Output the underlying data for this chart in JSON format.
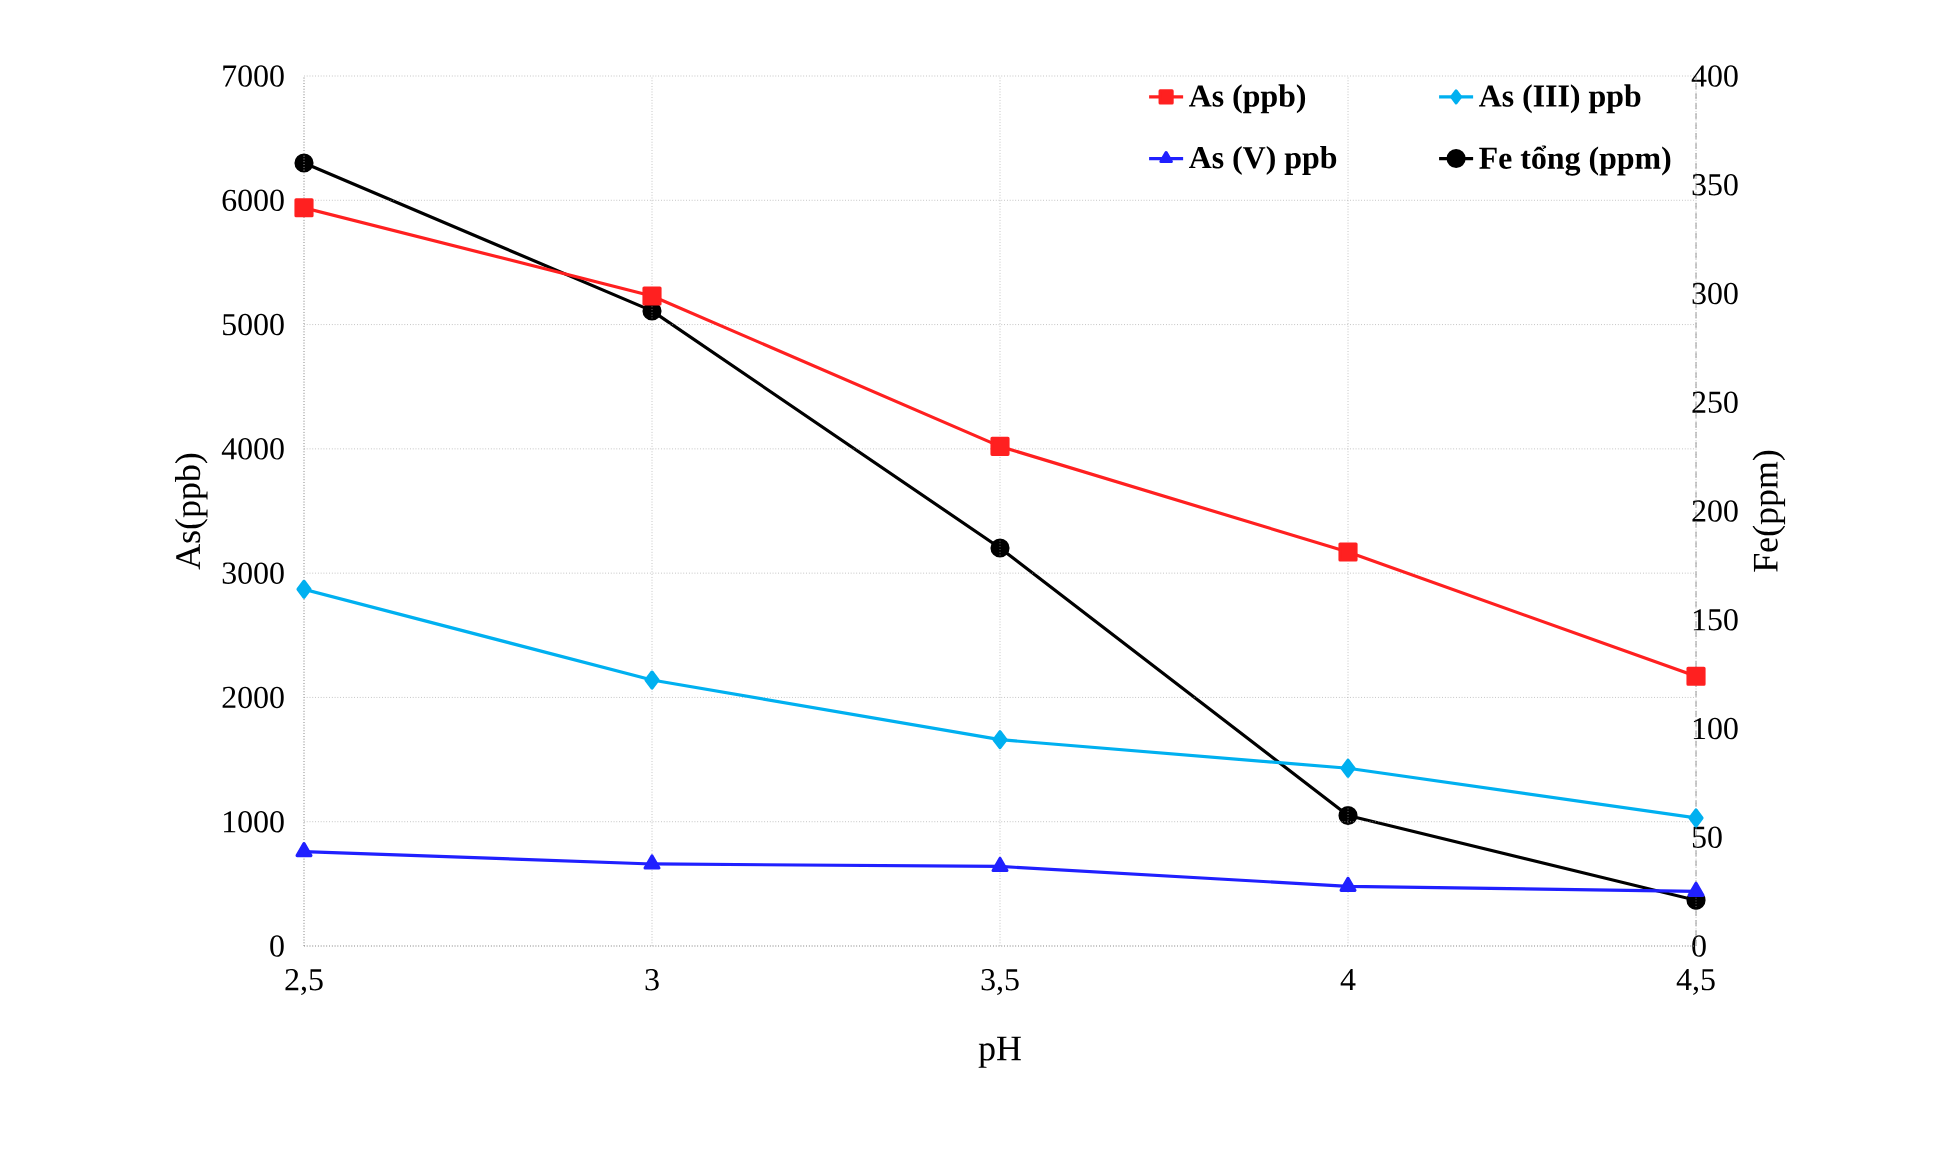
{
  "chart_data": {
    "type": "line",
    "xlabel": "pH",
    "ylabel": "As(ppb)",
    "y2label": "Fe(ppm)",
    "x": [
      2.5,
      3,
      3.5,
      4,
      4.5
    ],
    "xlim": [
      2.5,
      4.5
    ],
    "xticks": [
      {
        "value": 2.5,
        "label": "2,5"
      },
      3,
      {
        "value": 3.5,
        "label": "3,5"
      },
      4,
      {
        "value": 4.5,
        "label": "4,5"
      }
    ],
    "ylim": [
      0,
      7000
    ],
    "yticks": [
      0,
      1000,
      2000,
      3000,
      4000,
      5000,
      6000,
      7000
    ],
    "y2lim": [
      0,
      400
    ],
    "y2ticks": [
      0,
      50,
      100,
      150,
      200,
      250,
      300,
      350,
      400
    ],
    "grid": true,
    "legend": "top right",
    "line_style": "solid",
    "series": [
      {
        "name": "As (ppb)",
        "color": "#ff2020",
        "marker": "square",
        "values": [
          5940,
          5230,
          4020,
          3170,
          2170
        ]
      },
      {
        "name": "As (III) ppb",
        "color": "#00b0f0",
        "marker": "diamond",
        "values": [
          2870,
          2140,
          1660,
          1430,
          1030
        ]
      },
      {
        "name": "As (V) ppb",
        "color": "#2020ff",
        "marker": "triangle",
        "values": [
          760,
          660,
          640,
          480,
          440
        ]
      },
      {
        "name": "Fe tổng (ppm)",
        "color": "#000000",
        "marker": "circle",
        "axis": "y2",
        "values": [
          360,
          292,
          183,
          60,
          21
        ]
      }
    ]
  }
}
